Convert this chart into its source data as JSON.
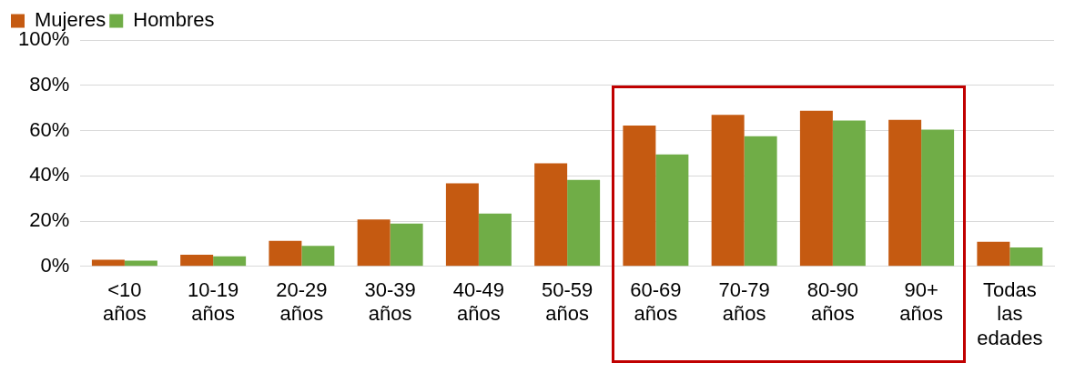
{
  "chart_data": {
    "type": "bar",
    "categories": [
      "<10 años",
      "10-19 años",
      "20-29 años",
      "30-39 años",
      "40-49 años",
      "50-59 años",
      "60-69 años",
      "70-79 años",
      "80-90 años",
      "90+ años",
      "Todas las edades"
    ],
    "series": [
      {
        "name": "Mujeres",
        "color": "#c55a11",
        "values": [
          2.9,
          5.1,
          11.3,
          20.7,
          36.7,
          45.5,
          62.2,
          66.9,
          68.7,
          64.7,
          10.9
        ]
      },
      {
        "name": "Hombres",
        "color": "#70ad47",
        "values": [
          2.5,
          4.4,
          9.1,
          18.9,
          23.3,
          38.2,
          49.5,
          57.5,
          64.4,
          60.4,
          8.4
        ]
      }
    ],
    "ylim": [
      0,
      100
    ],
    "yticks": [
      {
        "value": 0,
        "label": "0%"
      },
      {
        "value": 20,
        "label": "20%"
      },
      {
        "value": 40,
        "label": "40%"
      },
      {
        "value": 60,
        "label": "60%"
      },
      {
        "value": 80,
        "label": "80%"
      },
      {
        "value": 100,
        "label": "100%"
      }
    ],
    "grid": "y",
    "legend": "top left"
  }
}
